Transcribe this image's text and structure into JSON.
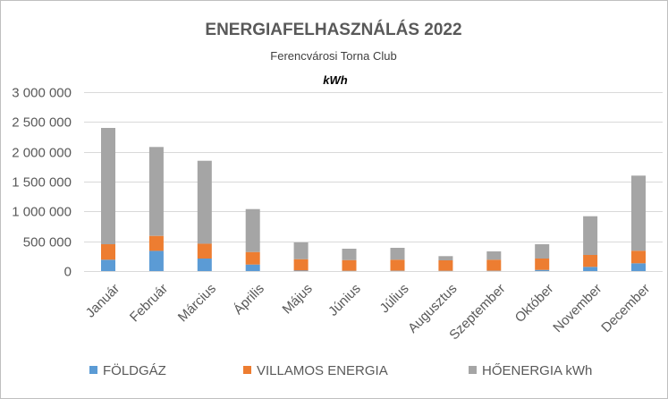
{
  "chart_data": {
    "type": "bar",
    "stacked": true,
    "title": "ENERGIAFELHASZNÁLÁS 2022",
    "subtitle": "Ferencvárosi Torna Club",
    "unit_label": "kWh",
    "categories": [
      "Január",
      "Február",
      "Március",
      "Április",
      "Május",
      "Június",
      "Július",
      "Augusztus",
      "Szeptember",
      "Október",
      "November",
      "December"
    ],
    "series": [
      {
        "name": "FÖLDGÁZ",
        "color": "#5b9bd5",
        "values": [
          190000,
          340000,
          210000,
          110000,
          10000,
          5000,
          5000,
          5000,
          5000,
          20000,
          70000,
          130000
        ]
      },
      {
        "name": "VILLAMOS ENERGIA",
        "color": "#ed7d31",
        "values": [
          260000,
          250000,
          250000,
          210000,
          190000,
          180000,
          185000,
          175000,
          185000,
          190000,
          200000,
          210000
        ]
      },
      {
        "name": "HŐENERGIA kWh",
        "color": "#a5a5a5",
        "values": [
          1950000,
          1490000,
          1390000,
          720000,
          280000,
          190000,
          200000,
          70000,
          140000,
          240000,
          650000,
          1260000
        ]
      }
    ],
    "ylim": [
      0,
      3000000
    ],
    "yticks": [
      0,
      500000,
      1000000,
      1500000,
      2000000,
      2500000,
      3000000
    ],
    "ytick_labels": [
      "0",
      "500 000",
      "1 000 000",
      "1 500 000",
      "2 000 000",
      "2 500 000",
      "3 000 000"
    ],
    "xlabel": "",
    "ylabel": "",
    "grid": true,
    "legend_position": "bottom"
  }
}
